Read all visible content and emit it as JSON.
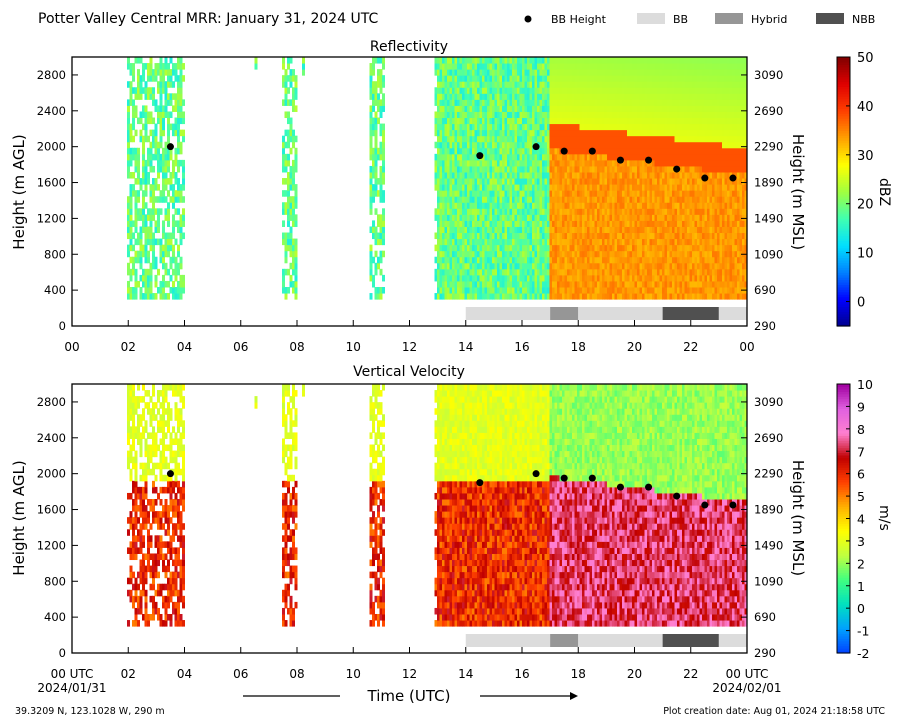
{
  "header": {
    "title": "Potter Valley Central MRR:  January 31, 2024 UTC",
    "legend": [
      {
        "label": "BB Height",
        "kind": "marker",
        "color": "#000000"
      },
      {
        "label": "BB",
        "kind": "swatch",
        "color": "#dcdcdc"
      },
      {
        "label": "Hybrid",
        "kind": "swatch",
        "color": "#969696"
      },
      {
        "label": "NBB",
        "kind": "swatch",
        "color": "#505050"
      }
    ]
  },
  "footer": {
    "location": "39.3209 N, 123.1028 W, 290 m",
    "creation": "Plot creation date: Aug 01, 2024 21:18:58 UTC",
    "xlabel": "Time (UTC)",
    "start_date": "2024/01/31",
    "end_date": "2024/02/01"
  },
  "chart_data": [
    {
      "type": "heatmap",
      "title": "Reflectivity",
      "ylabel": "Height (m AGL)",
      "y2label": "Height (m MSL)",
      "colorbar_label": "dBZ",
      "xlim": [
        0,
        24
      ],
      "ylim": [
        0,
        3000
      ],
      "x_ticks": [
        "00",
        "02",
        "04",
        "06",
        "08",
        "10",
        "12",
        "14",
        "16",
        "18",
        "20",
        "22",
        "00"
      ],
      "y_ticks": [
        0,
        400,
        800,
        1200,
        1600,
        2000,
        2400,
        2800
      ],
      "y2_ticks": [
        290,
        690,
        1090,
        1490,
        1890,
        2290,
        2690,
        3090
      ],
      "colorbar": {
        "min": -5,
        "max": 50,
        "ticks": [
          0,
          10,
          20,
          30,
          40,
          50
        ],
        "colors": [
          "#00008c",
          "#0000ff",
          "#0080ff",
          "#00e0ff",
          "#40ffb0",
          "#a0ff40",
          "#ffff00",
          "#ffa000",
          "#ff4000",
          "#e00000",
          "#800000"
        ]
      },
      "bb_height": {
        "x": [
          3.5,
          14.5,
          16.5,
          17.5,
          18.5,
          19.5,
          20.5,
          21.5,
          22.5,
          23.5
        ],
        "y": [
          2000,
          1900,
          2000,
          1950,
          1950,
          1850,
          1850,
          1750,
          1650,
          1650
        ]
      },
      "bb_type_bar": [
        {
          "type": "BB",
          "start": 14.0,
          "end": 17.0
        },
        {
          "type": "Hybrid",
          "start": 17.0,
          "end": 18.0
        },
        {
          "type": "BB",
          "start": 18.0,
          "end": 21.0
        },
        {
          "type": "NBB",
          "start": 21.0,
          "end": 23.0
        },
        {
          "type": "BB",
          "start": 23.0,
          "end": 24.0
        }
      ]
    },
    {
      "type": "heatmap",
      "title": "Vertical Velocity",
      "ylabel": "Height (m AGL)",
      "y2label": "Height (m MSL)",
      "colorbar_label": "m/s",
      "xlim": [
        0,
        24
      ],
      "ylim": [
        0,
        3000
      ],
      "x_ticks": [
        "00 UTC",
        "02",
        "04",
        "06",
        "08",
        "10",
        "12",
        "14",
        "16",
        "18",
        "20",
        "22",
        "00 UTC"
      ],
      "y_ticks": [
        0,
        400,
        800,
        1200,
        1600,
        2000,
        2400,
        2800
      ],
      "y2_ticks": [
        290,
        690,
        1090,
        1490,
        1890,
        2290,
        2690,
        3090
      ],
      "colorbar": {
        "min": -2,
        "max": 10,
        "ticks": [
          -2,
          -1,
          0,
          1,
          2,
          3,
          4,
          5,
          6,
          7,
          8,
          9,
          10
        ],
        "colors": [
          "#0040ff",
          "#00a0ff",
          "#00e0c0",
          "#40ff80",
          "#c0ff40",
          "#ffff00",
          "#ffb000",
          "#ff4000",
          "#c00000",
          "#ff80d0",
          "#e060e0",
          "#a000a0"
        ]
      },
      "bb_height": {
        "x": [
          3.5,
          14.5,
          16.5,
          17.5,
          18.5,
          19.5,
          20.5,
          21.5,
          22.5,
          23.5
        ],
        "y": [
          2000,
          1900,
          2000,
          1950,
          1950,
          1850,
          1850,
          1750,
          1650,
          1650
        ]
      },
      "bb_type_bar": [
        {
          "type": "BB",
          "start": 14.0,
          "end": 17.0
        },
        {
          "type": "Hybrid",
          "start": 17.0,
          "end": 18.0
        },
        {
          "type": "BB",
          "start": 18.0,
          "end": 21.0
        },
        {
          "type": "NBB",
          "start": 21.0,
          "end": 23.0
        },
        {
          "type": "BB",
          "start": 23.0,
          "end": 24.0
        }
      ]
    }
  ]
}
